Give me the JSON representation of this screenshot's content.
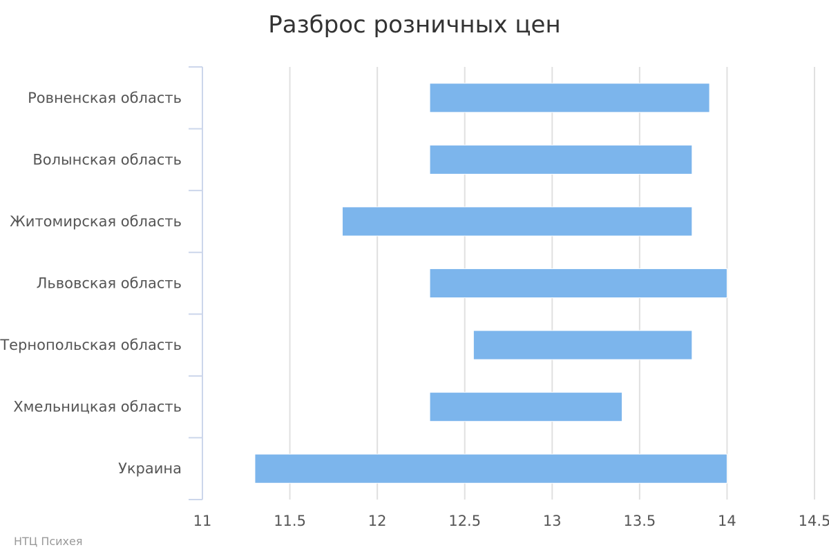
{
  "chart_data": {
    "type": "bar",
    "orientation": "horizontal",
    "subtype": "range",
    "title": "Разброс розничных цен",
    "categories": [
      "Ровненская область",
      "Волынская область",
      "Житомирская область",
      "Львовская область",
      "Тернопольская область",
      "Хмельницкая область",
      "Украина"
    ],
    "series": [
      {
        "low": [
          12.3,
          12.3,
          11.8,
          12.3,
          12.55,
          12.3,
          11.3
        ],
        "high": [
          13.9,
          13.8,
          13.8,
          14.0,
          13.8,
          13.4,
          14.0
        ]
      }
    ],
    "xlim": [
      11,
      14.5
    ],
    "ticks": [
      "11",
      "11.5",
      "12",
      "12.5",
      "13",
      "13.5",
      "14",
      "14.5"
    ],
    "tick_values": [
      11,
      11.5,
      12,
      12.5,
      13,
      13.5,
      14,
      14.5
    ],
    "grid": true,
    "bar_color": "#7cb5ec",
    "credit": "НТЦ Психея"
  }
}
